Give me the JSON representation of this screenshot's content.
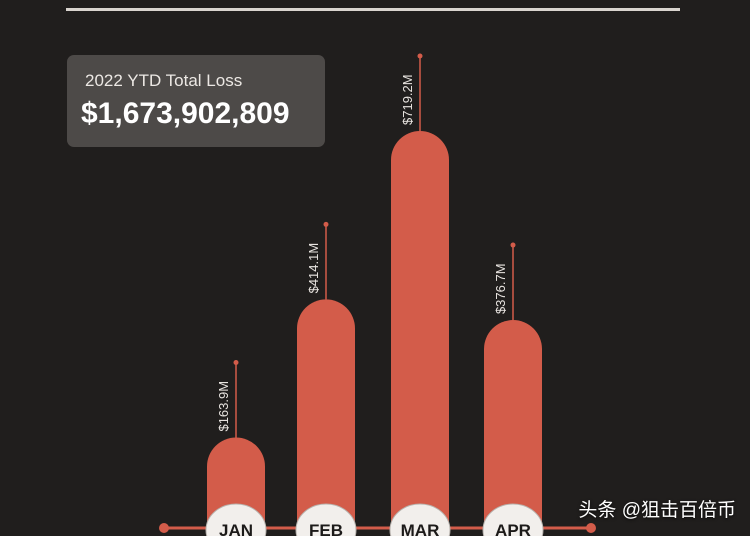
{
  "summary": {
    "label": "2022 YTD Total Loss",
    "value": "$1,673,902,809"
  },
  "colors": {
    "background": "#201e1d",
    "bar": "#d35c4a",
    "card": "#4d4a48",
    "month_pill": "#f2efec"
  },
  "watermark": "头条 @狙击百倍币",
  "chart_data": {
    "type": "bar",
    "title": "",
    "xlabel": "",
    "ylabel": "",
    "categories": [
      "JAN",
      "FEB",
      "MAR",
      "APR"
    ],
    "values": [
      163.9,
      414.1,
      719.2,
      376.7
    ],
    "data_labels": [
      "$163.9M",
      "$414.1M",
      "$719.2M",
      "$376.7M"
    ],
    "unit": "$M",
    "ylim": [
      0,
      800
    ],
    "grid": false,
    "legend": "none"
  }
}
